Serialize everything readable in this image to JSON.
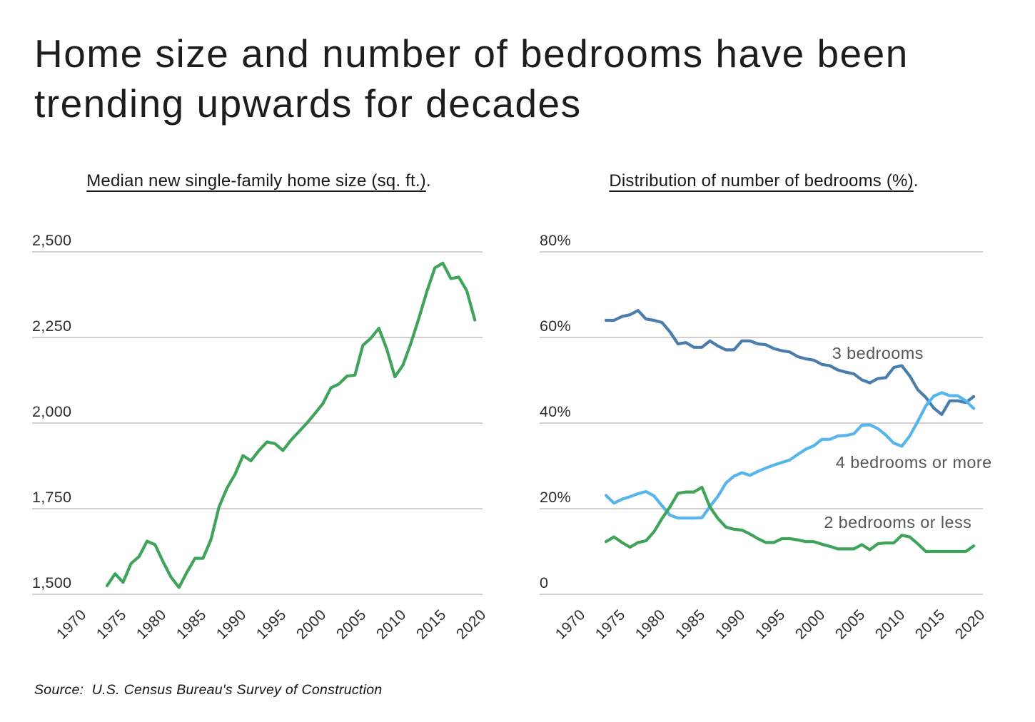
{
  "page": {
    "title_lines": [
      "Home size and number of bedrooms have been",
      "trending upwards for decades"
    ],
    "source": "Source:  U.S. Census Bureau's Survey of Construction"
  },
  "colors": {
    "home_size_line": "#3FA45A",
    "three_bedrooms_line": "#4A7DAB",
    "four_bedrooms_line": "#56B5EB",
    "two_bedrooms_line": "#3FA45A",
    "gridline": "#C9C9C9",
    "axis_label": "#2D2D2D",
    "series_label": "#56575B",
    "title_text": "#1D1D1D"
  },
  "chart_data": [
    {
      "name": "home-size",
      "type": "line",
      "title": "Median new single-family home size (sq. ft.)",
      "title_suffix": ".",
      "xlabel": "",
      "ylabel": "",
      "grid": "horizontal",
      "legend_position": "none",
      "xlim": [
        1970,
        2020
      ],
      "ylim": [
        1450,
        2500
      ],
      "x": [
        1973,
        1974,
        1975,
        1976,
        1977,
        1978,
        1979,
        1980,
        1981,
        1982,
        1983,
        1984,
        1985,
        1986,
        1987,
        1988,
        1989,
        1990,
        1991,
        1992,
        1993,
        1994,
        1995,
        1996,
        1997,
        1998,
        1999,
        2000,
        2001,
        2002,
        2003,
        2004,
        2005,
        2006,
        2007,
        2008,
        2009,
        2010,
        2011,
        2012,
        2013,
        2014,
        2015,
        2016,
        2017,
        2018,
        2019
      ],
      "y_axis": {
        "min": 1500,
        "max": 2500,
        "ticks": [
          {
            "value": 2500,
            "label": "2,500"
          },
          {
            "value": 2250,
            "label": "2,250"
          },
          {
            "value": 2000,
            "label": "2,000"
          },
          {
            "value": 1750,
            "label": "1,750"
          },
          {
            "value": 1500,
            "label": "1,500"
          }
        ]
      },
      "x_axis": {
        "ticks": [
          {
            "value": 1970,
            "label": "1970"
          },
          {
            "value": 1975,
            "label": "1975"
          },
          {
            "value": 1980,
            "label": "1980"
          },
          {
            "value": 1985,
            "label": "1985"
          },
          {
            "value": 1990,
            "label": "1990"
          },
          {
            "value": 1995,
            "label": "1995"
          },
          {
            "value": 2000,
            "label": "2000"
          },
          {
            "value": 2005,
            "label": "2005"
          },
          {
            "value": 2010,
            "label": "2010"
          },
          {
            "value": 2015,
            "label": "2015"
          },
          {
            "value": 2020,
            "label": "2020"
          }
        ]
      },
      "series": [
        {
          "id": "median-home-size",
          "name": "Median new single-family home size (sq. ft.)",
          "color_key": "home_size_line",
          "values": [
            1525,
            1560,
            1535,
            1590,
            1610,
            1655,
            1645,
            1595,
            1550,
            1520,
            1565,
            1605,
            1605,
            1660,
            1755,
            1810,
            1850,
            1905,
            1890,
            1920,
            1945,
            1940,
            1920,
            1950,
            1975,
            2000,
            2028,
            2057,
            2103,
            2114,
            2137,
            2140,
            2227,
            2248,
            2277,
            2215,
            2135,
            2169,
            2233,
            2306,
            2384,
            2453,
            2467,
            2422,
            2426,
            2386,
            2301
          ]
        }
      ],
      "annotations": []
    },
    {
      "name": "bedroom-distribution",
      "type": "line",
      "title": "Distribution of number of bedrooms (%)",
      "title_suffix": ".",
      "xlabel": "",
      "ylabel": "",
      "grid": "horizontal",
      "legend_position": "inline-labels",
      "xlim": [
        1970,
        2020
      ],
      "ylim": [
        0,
        80
      ],
      "x": [
        1973,
        1974,
        1975,
        1976,
        1977,
        1978,
        1979,
        1980,
        1981,
        1982,
        1983,
        1984,
        1985,
        1986,
        1987,
        1988,
        1989,
        1990,
        1991,
        1992,
        1993,
        1994,
        1995,
        1996,
        1997,
        1998,
        1999,
        2000,
        2001,
        2002,
        2003,
        2004,
        2005,
        2006,
        2007,
        2008,
        2009,
        2010,
        2011,
        2012,
        2013,
        2014,
        2015,
        2016,
        2017,
        2018,
        2019
      ],
      "y_axis": {
        "min": 0,
        "max": 80,
        "ticks": [
          {
            "value": 80,
            "label": "80%"
          },
          {
            "value": 60,
            "label": "60%"
          },
          {
            "value": 40,
            "label": "40%"
          },
          {
            "value": 20,
            "label": "20%"
          },
          {
            "value": 0,
            "label": "0"
          }
        ]
      },
      "x_axis": {
        "ticks": [
          {
            "value": 1970,
            "label": "1970"
          },
          {
            "value": 1975,
            "label": "1975"
          },
          {
            "value": 1980,
            "label": "1980"
          },
          {
            "value": 1985,
            "label": "1985"
          },
          {
            "value": 1990,
            "label": "1990"
          },
          {
            "value": 1995,
            "label": "1995"
          },
          {
            "value": 2000,
            "label": "2000"
          },
          {
            "value": 2005,
            "label": "2005"
          },
          {
            "value": 2010,
            "label": "2010"
          },
          {
            "value": 2015,
            "label": "2015"
          },
          {
            "value": 2020,
            "label": "2020"
          }
        ]
      },
      "series": [
        {
          "id": "three-bedrooms",
          "name": "3 bedrooms",
          "color_key": "three_bedrooms_line",
          "values": [
            64.0,
            64.0,
            64.9,
            65.3,
            66.3,
            64.3,
            64.0,
            63.5,
            61.3,
            58.5,
            58.8,
            57.7,
            57.7,
            59.2,
            58.0,
            57.1,
            57.1,
            59.2,
            59.2,
            58.5,
            58.3,
            57.4,
            56.9,
            56.6,
            55.5,
            55.0,
            54.7,
            53.7,
            53.4,
            52.4,
            51.9,
            51.5,
            50.1,
            49.4,
            50.4,
            50.6,
            53.0,
            53.4,
            51.0,
            47.8,
            46.0,
            43.5,
            42.0,
            45.2,
            45.2,
            44.8,
            46.2
          ]
        },
        {
          "id": "four-bedrooms-or-more",
          "name": "4 bedrooms or more",
          "color_key": "four_bedrooms_line",
          "values": [
            23.1,
            21.3,
            22.2,
            22.8,
            23.5,
            24.0,
            23.0,
            20.7,
            18.5,
            17.8,
            17.8,
            17.8,
            17.9,
            20.5,
            22.9,
            26.0,
            27.6,
            28.4,
            27.8,
            28.7,
            29.5,
            30.2,
            30.8,
            31.4,
            32.7,
            33.9,
            34.7,
            36.2,
            36.2,
            37.0,
            37.1,
            37.5,
            39.5,
            39.6,
            38.7,
            37.2,
            35.3,
            34.6,
            37.0,
            40.4,
            44.0,
            46.3,
            47.1,
            46.4,
            46.4,
            45.2,
            43.4
          ]
        },
        {
          "id": "two-bedrooms-or-less",
          "name": "2 bedrooms or less",
          "color_key": "two_bedrooms_line",
          "values": [
            12.3,
            13.4,
            12.1,
            11.0,
            12.1,
            12.5,
            14.6,
            17.7,
            20.4,
            23.6,
            23.9,
            23.9,
            25.0,
            20.4,
            17.7,
            15.7,
            15.2,
            15.0,
            14.1,
            13.0,
            12.1,
            12.1,
            13.0,
            13.0,
            12.7,
            12.3,
            12.3,
            11.7,
            11.2,
            10.6,
            10.6,
            10.6,
            11.6,
            10.4,
            11.8,
            12.0,
            12.0,
            13.8,
            13.4,
            11.8,
            10.0,
            10.0,
            10.0,
            10.0,
            10.0,
            10.0,
            11.3
          ]
        }
      ],
      "annotations": [
        {
          "id": "three-bedrooms",
          "text": "3 bedrooms",
          "year": 2007.0,
          "value": 56.3
        },
        {
          "id": "four-bedrooms-or-more",
          "text": "4 bedrooms or more",
          "year": 2011.5,
          "value": 30.8
        },
        {
          "id": "two-bedrooms-or-less",
          "text": "2 bedrooms or less",
          "year": 2009.5,
          "value": 16.8
        }
      ]
    }
  ]
}
